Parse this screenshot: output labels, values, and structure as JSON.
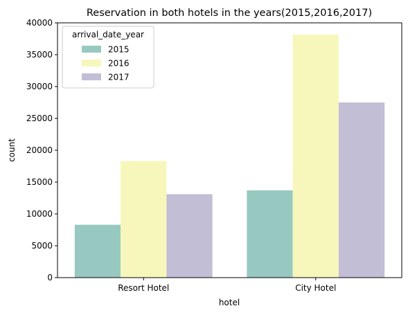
{
  "chart_data": {
    "type": "bar",
    "title": "Reservation in both hotels in the years(2015,2016,2017)",
    "xlabel": "hotel",
    "ylabel": "count",
    "categories": [
      "Resort Hotel",
      "City Hotel"
    ],
    "series": [
      {
        "name": "2015",
        "color": "#98c9c1",
        "values": [
          8300,
          13700
        ]
      },
      {
        "name": "2016",
        "color": "#f7f7bb",
        "values": [
          18300,
          38150
        ]
      },
      {
        "name": "2017",
        "color": "#c2bed6",
        "values": [
          13100,
          27500
        ]
      }
    ],
    "ylim": [
      0,
      40000
    ],
    "yticks": [
      0,
      5000,
      10000,
      15000,
      20000,
      25000,
      30000,
      35000,
      40000
    ],
    "legend": {
      "title": "arrival_date_year",
      "placement": "top-left"
    },
    "grid": false
  }
}
